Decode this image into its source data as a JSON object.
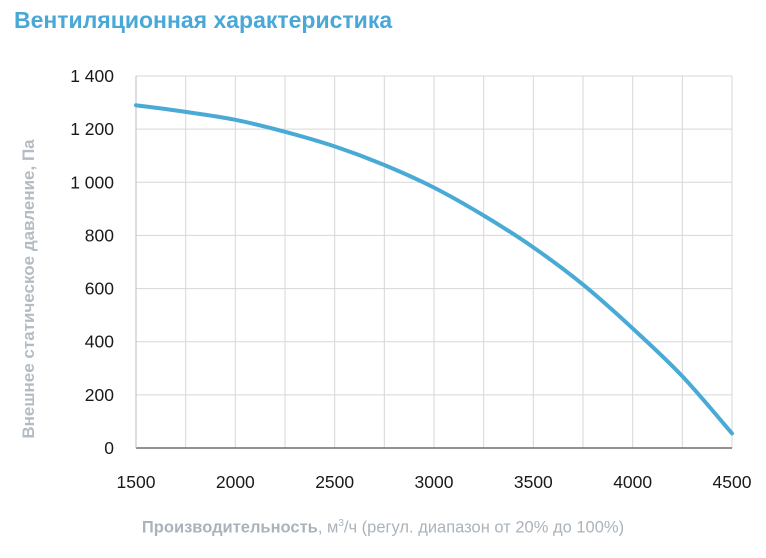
{
  "chart_data": {
    "type": "line",
    "title": "Вентиляционная характеристика",
    "ylabel": "Внешнее статическое давление, Па",
    "xlabel": {
      "bold_part": "Производительность",
      "unit_prefix": ", м",
      "unit_sup": "3",
      "unit_suffix": "/ч",
      "note": " (регул. диапазон от 20% до 100%)"
    },
    "xlim": [
      1500,
      4500
    ],
    "ylim": [
      0,
      1400
    ],
    "x_ticks": [
      1500,
      2000,
      2500,
      3000,
      3500,
      4000,
      4500
    ],
    "x_tick_labels": [
      "1500",
      "2000",
      "2500",
      "3000",
      "3500",
      "4000",
      "4500"
    ],
    "y_ticks": [
      0,
      200,
      400,
      600,
      800,
      1000,
      1200,
      1400
    ],
    "y_tick_labels": [
      "0",
      "200",
      "400",
      "600",
      "800",
      "1 000",
      "1 200",
      "1 400"
    ],
    "x_minor_grid_step": 250,
    "grid": true,
    "line_color": "#4aaad6",
    "series": [
      {
        "x": [
          1500,
          1750,
          2000,
          2250,
          2500,
          2750,
          3000,
          3250,
          3500,
          3750,
          4000,
          4250,
          4500
        ],
        "y": [
          1290,
          1265,
          1235,
          1190,
          1135,
          1065,
          980,
          875,
          755,
          615,
          450,
          270,
          55
        ]
      }
    ]
  }
}
